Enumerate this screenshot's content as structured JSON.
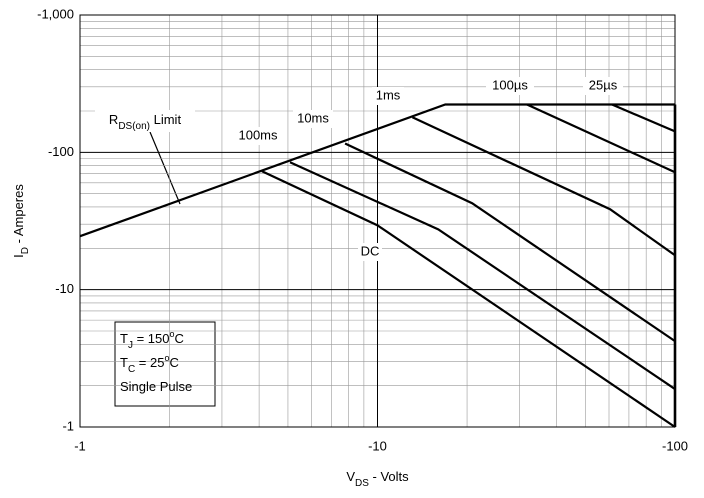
{
  "chart_data": {
    "type": "line",
    "log_scale": true,
    "grid": true,
    "color": "#000000",
    "x_label": [
      "V",
      "DS",
      " - Volts"
    ],
    "y_label": [
      "I",
      "D",
      " - Amperes"
    ],
    "xlim": [
      -1,
      -100
    ],
    "xticks": [
      -1,
      -10,
      -100
    ],
    "ylim": [
      -1,
      -1000
    ],
    "yticks": [
      -1,
      -10,
      -100,
      {
        "value": -1000,
        "label": "-1,000"
      }
    ],
    "series": [
      {
        "x": [
          -1,
          -16.9,
          -100
        ],
        "values": [
          -24.5,
          -223,
          -223
        ]
      },
      {
        "name": "DC",
        "x": [
          -4.09,
          -10,
          -100
        ],
        "values": [
          -72.8,
          -29.4,
          -1
        ]
      },
      {
        "name": "100ms",
        "x": [
          -5.08,
          -16.0,
          -100
        ],
        "values": [
          -84.6,
          -27.5,
          -1.89
        ]
      },
      {
        "name": "10ms",
        "x": [
          -7.78,
          -20.8,
          -100
        ],
        "values": [
          -116,
          -42.6,
          -4.22
        ]
      },
      {
        "name": "1ms",
        "x": [
          -13.1,
          -60.5,
          -100
        ],
        "values": [
          -180,
          -38.5,
          -17.8
        ]
      },
      {
        "name": "100µs",
        "x": [
          -31.8,
          -100
        ],
        "values": [
          -223,
          -71.6
        ]
      },
      {
        "name": "25µs",
        "x": [
          -61.4,
          -100
        ],
        "values": [
          -223,
          -142
        ]
      }
    ],
    "rds_label": [
      "R",
      "DS(on)",
      " Limit"
    ],
    "conditions": [
      [
        "T",
        "J",
        " = 150",
        "o",
        "C"
      ],
      [
        "T",
        "C",
        " = 25",
        "o",
        "C"
      ],
      [
        "Single Pulse"
      ]
    ]
  }
}
